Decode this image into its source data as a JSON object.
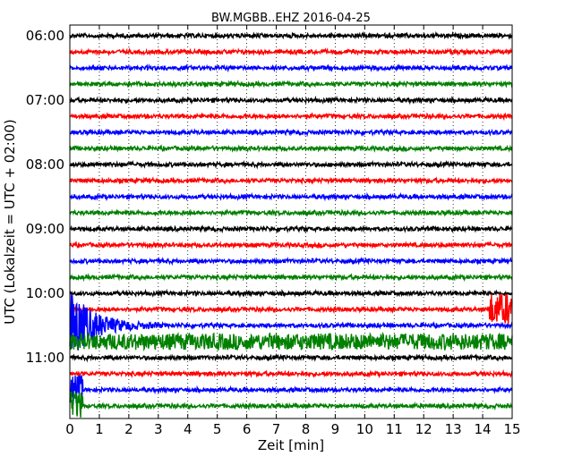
{
  "chart_data": {
    "type": "line",
    "title": "BW.MGBB..EHZ 2016-04-25",
    "xlabel": "Zeit  [min]",
    "ylabel": "UTC (Lokalzeit = UTC + 02:00)",
    "xlim": [
      0,
      15
    ],
    "x_ticks": [
      0,
      1,
      2,
      3,
      4,
      5,
      6,
      7,
      8,
      9,
      10,
      11,
      12,
      13,
      14,
      15
    ],
    "y_tick_labels": [
      "06:00",
      "07:00",
      "08:00",
      "09:00",
      "10:00",
      "11:00"
    ],
    "grid": "vertical dotted lines at each minute",
    "trace_interval_minutes": 15,
    "trace_colors": [
      "#000000",
      "#ff0000",
      "#0000ff",
      "#008000"
    ],
    "series": [
      {
        "start": "06:00",
        "color": "#000000"
      },
      {
        "start": "06:15",
        "color": "#ff0000"
      },
      {
        "start": "06:30",
        "color": "#0000ff"
      },
      {
        "start": "06:45",
        "color": "#008000"
      },
      {
        "start": "07:00",
        "color": "#000000"
      },
      {
        "start": "07:15",
        "color": "#ff0000"
      },
      {
        "start": "07:30",
        "color": "#0000ff"
      },
      {
        "start": "07:45",
        "color": "#008000"
      },
      {
        "start": "08:00",
        "color": "#000000"
      },
      {
        "start": "08:15",
        "color": "#ff0000"
      },
      {
        "start": "08:30",
        "color": "#0000ff"
      },
      {
        "start": "08:45",
        "color": "#008000"
      },
      {
        "start": "09:00",
        "color": "#000000"
      },
      {
        "start": "09:15",
        "color": "#ff0000"
      },
      {
        "start": "09:30",
        "color": "#0000ff"
      },
      {
        "start": "09:45",
        "color": "#008000"
      },
      {
        "start": "10:00",
        "color": "#000000"
      },
      {
        "start": "10:15",
        "color": "#ff0000"
      },
      {
        "start": "10:30",
        "color": "#0000ff"
      },
      {
        "start": "10:45",
        "color": "#008000"
      },
      {
        "start": "11:00",
        "color": "#000000"
      },
      {
        "start": "11:15",
        "color": "#ff0000"
      },
      {
        "start": "11:30",
        "color": "#0000ff"
      },
      {
        "start": "11:45",
        "color": "#008000"
      }
    ]
  }
}
